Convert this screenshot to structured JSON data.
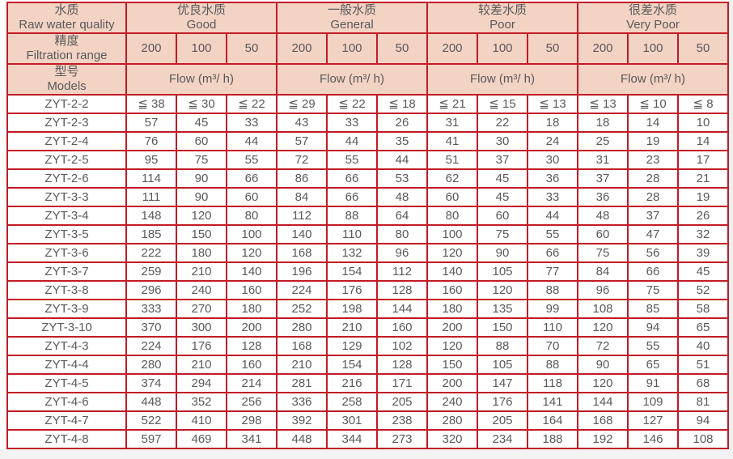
{
  "colors": {
    "border_red": "#c21b26",
    "header_fill": "#f3d3c4",
    "text_gray": "#595959"
  },
  "table": {
    "row_headers": [
      {
        "zh": "水质",
        "en": "Raw water quality"
      },
      {
        "zh": "精度",
        "en": "Filtration range"
      },
      {
        "zh": "型号",
        "en": "Models"
      }
    ],
    "quality_groups": [
      {
        "zh": "优良水质",
        "en": "Good"
      },
      {
        "zh": "一般水质",
        "en": "General"
      },
      {
        "zh": "较差水质",
        "en": "Poor"
      },
      {
        "zh": "很差水质",
        "en": "Very Poor"
      }
    ],
    "filtration_values": [
      "200",
      "100",
      "50"
    ],
    "flow_label": "Flow (m³/ h)",
    "rows": [
      {
        "model": "ZYT-2-2",
        "values": [
          "≦ 38",
          "≦ 30",
          "≦ 22",
          "≦ 29",
          "≦ 22",
          "≦ 18",
          "≦ 21",
          "≦ 15",
          "≦ 13",
          "≦ 13",
          "≦ 10",
          "≦ 8"
        ]
      },
      {
        "model": "ZYT-2-3",
        "values": [
          57,
          45,
          33,
          43,
          33,
          26,
          31,
          22,
          18,
          18,
          14,
          10
        ]
      },
      {
        "model": "ZYT-2-4",
        "values": [
          76,
          60,
          44,
          57,
          44,
          35,
          41,
          30,
          24,
          25,
          19,
          14
        ]
      },
      {
        "model": "ZYT-2-5",
        "values": [
          95,
          75,
          55,
          72,
          55,
          44,
          51,
          37,
          30,
          31,
          23,
          17
        ]
      },
      {
        "model": "ZYT-2-6",
        "values": [
          114,
          90,
          66,
          86,
          66,
          53,
          62,
          45,
          36,
          37,
          28,
          21
        ]
      },
      {
        "model": "ZYT-3-3",
        "values": [
          111,
          90,
          60,
          84,
          66,
          48,
          60,
          45,
          33,
          36,
          28,
          19
        ]
      },
      {
        "model": "ZYT-3-4",
        "values": [
          148,
          120,
          80,
          112,
          88,
          64,
          80,
          60,
          44,
          48,
          37,
          26
        ]
      },
      {
        "model": "ZYT-3-5",
        "values": [
          185,
          150,
          100,
          140,
          110,
          80,
          100,
          75,
          55,
          60,
          47,
          32
        ]
      },
      {
        "model": "ZYT-3-6",
        "values": [
          222,
          180,
          120,
          168,
          132,
          96,
          120,
          90,
          66,
          75,
          56,
          39
        ]
      },
      {
        "model": "ZYT-3-7",
        "values": [
          259,
          210,
          140,
          196,
          154,
          112,
          140,
          105,
          77,
          84,
          66,
          45
        ]
      },
      {
        "model": "ZYT-3-8",
        "values": [
          296,
          240,
          160,
          224,
          176,
          128,
          160,
          120,
          88,
          96,
          75,
          52
        ]
      },
      {
        "model": "ZYT-3-9",
        "values": [
          333,
          270,
          180,
          252,
          198,
          144,
          180,
          135,
          99,
          108,
          85,
          58
        ]
      },
      {
        "model": "ZYT-3-10",
        "values": [
          370,
          300,
          200,
          280,
          210,
          160,
          200,
          150,
          110,
          120,
          94,
          65
        ]
      },
      {
        "model": "ZYT-4-3",
        "values": [
          224,
          176,
          128,
          168,
          129,
          102,
          120,
          88,
          70,
          72,
          55,
          40
        ]
      },
      {
        "model": "ZYT-4-4",
        "values": [
          280,
          210,
          160,
          210,
          154,
          128,
          150,
          105,
          88,
          90,
          65,
          51
        ]
      },
      {
        "model": "ZYT-4-5",
        "values": [
          374,
          294,
          214,
          281,
          216,
          171,
          200,
          147,
          118,
          120,
          91,
          68
        ]
      },
      {
        "model": "ZYT-4-6",
        "values": [
          448,
          352,
          256,
          336,
          258,
          205,
          240,
          176,
          141,
          144,
          109,
          81
        ]
      },
      {
        "model": "ZYT-4-7",
        "values": [
          522,
          410,
          298,
          392,
          301,
          238,
          280,
          205,
          164,
          168,
          127,
          94
        ]
      },
      {
        "model": "ZYT-4-8",
        "values": [
          597,
          469,
          341,
          448,
          344,
          273,
          320,
          234,
          188,
          192,
          146,
          108
        ]
      }
    ]
  }
}
